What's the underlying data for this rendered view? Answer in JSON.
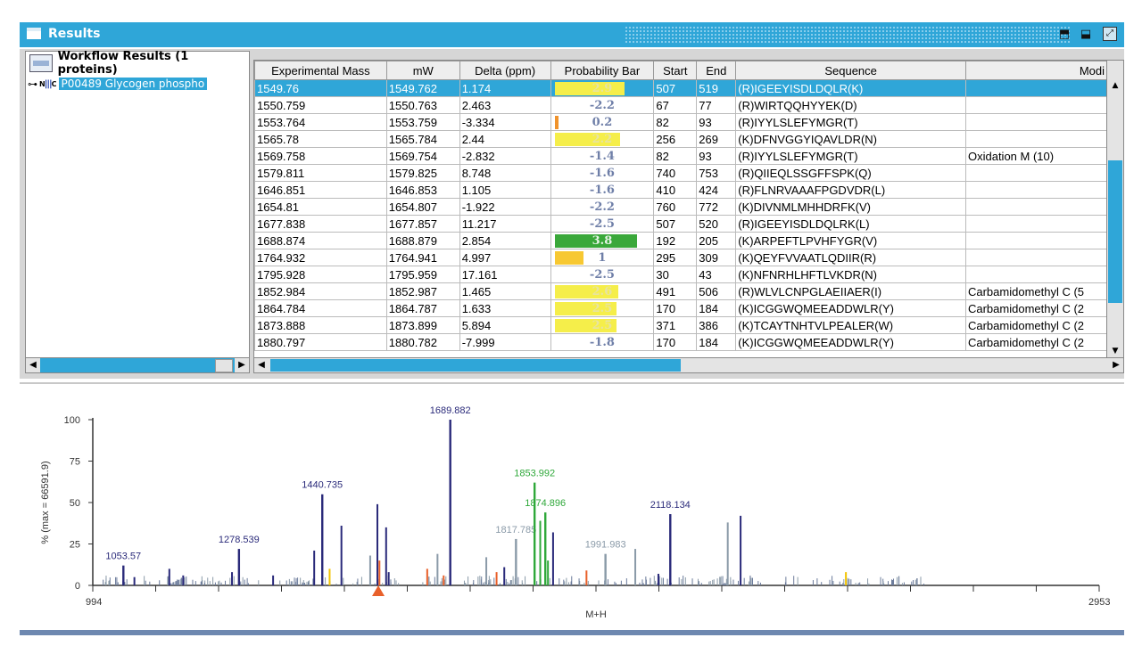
{
  "window": {
    "title": "Results"
  },
  "tree": {
    "header": "Workflow Results (1 proteins)",
    "item": {
      "key_glyph": "⊶",
      "n_label": "N",
      "c_label": "C",
      "label": "P00489 Glycogen phospho"
    }
  },
  "table": {
    "columns": [
      "Experimental Mass",
      "mW",
      "Delta (ppm)",
      "Probability Bar",
      "Start",
      "End",
      "Sequence",
      "Modi"
    ],
    "rows": [
      {
        "exp": "1549.76",
        "mw": "1549.762",
        "delta": "1.174",
        "prob": "2.9",
        "bar_color": "#f5ee4a",
        "bar_frac": 0.85,
        "start": "507",
        "end": "519",
        "seq": "(R)IGEEYISDLDQLR(K)",
        "mod": ""
      },
      {
        "exp": "1550.759",
        "mw": "1550.763",
        "delta": "2.463",
        "prob": "-2.2",
        "bar_color": "",
        "bar_frac": 0,
        "start": "67",
        "end": "77",
        "seq": "(R)WIRTQQHYYEK(D)",
        "mod": ""
      },
      {
        "exp": "1553.764",
        "mw": "1553.759",
        "delta": "-3.334",
        "prob": "0.2",
        "bar_color": "#f0932c",
        "bar_frac": 0.05,
        "start": "82",
        "end": "93",
        "seq": "(R)IYYLSLEFYMGR(T)",
        "mod": ""
      },
      {
        "exp": "1565.78",
        "mw": "1565.784",
        "delta": "2.44",
        "prob": "2.2",
        "bar_color": "#f5ee4a",
        "bar_frac": 0.8,
        "start": "256",
        "end": "269",
        "seq": "(K)DFNVGGYIQAVLDR(N)",
        "mod": ""
      },
      {
        "exp": "1569.758",
        "mw": "1569.754",
        "delta": "-2.832",
        "prob": "-1.4",
        "bar_color": "",
        "bar_frac": 0,
        "start": "82",
        "end": "93",
        "seq": "(R)IYYLSLEFYMGR(T)",
        "mod": "Oxidation M (10)"
      },
      {
        "exp": "1579.811",
        "mw": "1579.825",
        "delta": "8.748",
        "prob": "-1.6",
        "bar_color": "",
        "bar_frac": 0,
        "start": "740",
        "end": "753",
        "seq": "(R)QIIEQLSSGFFSPK(Q)",
        "mod": ""
      },
      {
        "exp": "1646.851",
        "mw": "1646.853",
        "delta": "1.105",
        "prob": "-1.6",
        "bar_color": "",
        "bar_frac": 0,
        "start": "410",
        "end": "424",
        "seq": "(R)FLNRVAAAFPGDVDR(L)",
        "mod": ""
      },
      {
        "exp": "1654.81",
        "mw": "1654.807",
        "delta": "-1.922",
        "prob": "-2.2",
        "bar_color": "",
        "bar_frac": 0,
        "start": "760",
        "end": "772",
        "seq": "(K)DIVNMLMHHDRFK(V)",
        "mod": ""
      },
      {
        "exp": "1677.838",
        "mw": "1677.857",
        "delta": "11.217",
        "prob": "-2.5",
        "bar_color": "",
        "bar_frac": 0,
        "start": "507",
        "end": "520",
        "seq": "(R)IGEEYISDLDQLRK(L)",
        "mod": ""
      },
      {
        "exp": "1688.874",
        "mw": "1688.879",
        "delta": "2.854",
        "prob": "3.8",
        "bar_color": "#3aa83a",
        "bar_frac": 1.0,
        "start": "192",
        "end": "205",
        "seq": "(K)ARPEFTLPVHFYGR(V)",
        "mod": ""
      },
      {
        "exp": "1764.932",
        "mw": "1764.941",
        "delta": "4.997",
        "prob": "1",
        "bar_color": "#f7c832",
        "bar_frac": 0.35,
        "start": "295",
        "end": "309",
        "seq": "(K)QEYFVVAATLQDIIR(R)",
        "mod": ""
      },
      {
        "exp": "1795.928",
        "mw": "1795.959",
        "delta": "17.161",
        "prob": "-2.5",
        "bar_color": "",
        "bar_frac": 0,
        "start": "30",
        "end": "43",
        "seq": "(K)NFNRHLHFTLVKDR(N)",
        "mod": ""
      },
      {
        "exp": "1852.984",
        "mw": "1852.987",
        "delta": "1.465",
        "prob": "2.6",
        "bar_color": "#f5ee4a",
        "bar_frac": 0.78,
        "start": "491",
        "end": "506",
        "seq": "(R)WLVLCNPGLAEIIAER(I)",
        "mod": "Carbamidomethyl C (5"
      },
      {
        "exp": "1864.784",
        "mw": "1864.787",
        "delta": "1.633",
        "prob": "2.5",
        "bar_color": "#f5ee4a",
        "bar_frac": 0.76,
        "start": "170",
        "end": "184",
        "seq": "(K)ICGGWQMEEADDWLR(Y)",
        "mod": "Carbamidomethyl C (2"
      },
      {
        "exp": "1873.888",
        "mw": "1873.899",
        "delta": "5.894",
        "prob": "2.5",
        "bar_color": "#f5ee4a",
        "bar_frac": 0.76,
        "start": "371",
        "end": "386",
        "seq": "(K)TCAYTNHTVLPEALER(W)",
        "mod": "Carbamidomethyl C (2"
      },
      {
        "exp": "1880.797",
        "mw": "1880.782",
        "delta": "-7.999",
        "prob": "-1.8",
        "bar_color": "",
        "bar_frac": 0,
        "start": "170",
        "end": "184",
        "seq": "(K)ICGGWQMEEADDWLR(Y)",
        "mod": "Carbamidomethyl C (2"
      }
    ]
  },
  "spectrum": {
    "ylabel": "% (max = 66591.9)",
    "xlabel": "M+H",
    "xmin": 994,
    "xmax": 2953,
    "yticks": [
      0,
      25,
      50,
      75,
      100
    ],
    "labeled_peaks": [
      {
        "mz": 1053.57,
        "label": "1053.57",
        "intensity": 12,
        "color": "#2a2a7a"
      },
      {
        "mz": 1278.539,
        "label": "1278.539",
        "intensity": 22,
        "color": "#2a2a7a"
      },
      {
        "mz": 1440.735,
        "label": "1440.735",
        "intensity": 55,
        "color": "#2a2a7a"
      },
      {
        "mz": 1689.882,
        "label": "1689.882",
        "intensity": 100,
        "color": "#2a2a7a"
      },
      {
        "mz": 1817.785,
        "label": "1817.785",
        "intensity": 28,
        "color": "#8a9aa8"
      },
      {
        "mz": 1853.992,
        "label": "1853.992",
        "intensity": 62,
        "color": "#2fa83a"
      },
      {
        "mz": 1874.896,
        "label": "1874.896",
        "intensity": 44,
        "color": "#2fa83a"
      },
      {
        "mz": 1991.983,
        "label": "1991.983",
        "intensity": 19,
        "color": "#8a9aa8"
      },
      {
        "mz": 2118.134,
        "label": "2118.134",
        "intensity": 43,
        "color": "#2a2a7a"
      }
    ],
    "minor_peaks": [
      {
        "mz": 1075,
        "intensity": 5,
        "color": "#2a2a7a"
      },
      {
        "mz": 1143,
        "intensity": 10,
        "color": "#2a2a7a"
      },
      {
        "mz": 1170,
        "intensity": 6,
        "color": "#2a2a7a"
      },
      {
        "mz": 1265,
        "intensity": 8,
        "color": "#2a2a7a"
      },
      {
        "mz": 1345,
        "intensity": 6,
        "color": "#2a2a7a"
      },
      {
        "mz": 1425,
        "intensity": 21,
        "color": "#2a2a7a"
      },
      {
        "mz": 1455,
        "intensity": 10,
        "color": "#f2c300"
      },
      {
        "mz": 1478,
        "intensity": 36,
        "color": "#2a2a7a"
      },
      {
        "mz": 1548,
        "intensity": 49,
        "color": "#2a2a7a"
      },
      {
        "mz": 1552,
        "intensity": 15,
        "color": "#e8602a"
      },
      {
        "mz": 1534,
        "intensity": 18,
        "color": "#8a9aa8"
      },
      {
        "mz": 1565,
        "intensity": 35,
        "color": "#2a2a7a"
      },
      {
        "mz": 1570,
        "intensity": 8,
        "color": "#2a2a7a"
      },
      {
        "mz": 1645,
        "intensity": 10,
        "color": "#e8602a"
      },
      {
        "mz": 1665,
        "intensity": 19,
        "color": "#8a9aa8"
      },
      {
        "mz": 1677,
        "intensity": 6,
        "color": "#e8602a"
      },
      {
        "mz": 1760,
        "intensity": 17,
        "color": "#8a9aa8"
      },
      {
        "mz": 1795,
        "intensity": 11,
        "color": "#2a2a7a"
      },
      {
        "mz": 1780,
        "intensity": 8,
        "color": "#e8602a"
      },
      {
        "mz": 1865,
        "intensity": 39,
        "color": "#2fa83a"
      },
      {
        "mz": 1880,
        "intensity": 15,
        "color": "#2fa83a"
      },
      {
        "mz": 1890,
        "intensity": 32,
        "color": "#2a2a7a"
      },
      {
        "mz": 1955,
        "intensity": 9,
        "color": "#e8602a"
      },
      {
        "mz": 2050,
        "intensity": 22,
        "color": "#8a9aa8"
      },
      {
        "mz": 2095,
        "intensity": 7,
        "color": "#2a2a7a"
      },
      {
        "mz": 2230,
        "intensity": 38,
        "color": "#8a9aa8"
      },
      {
        "mz": 2255,
        "intensity": 42,
        "color": "#2a2a7a"
      },
      {
        "mz": 2460,
        "intensity": 8,
        "color": "#f2c300"
      }
    ],
    "marker_mz": 1549.76
  }
}
